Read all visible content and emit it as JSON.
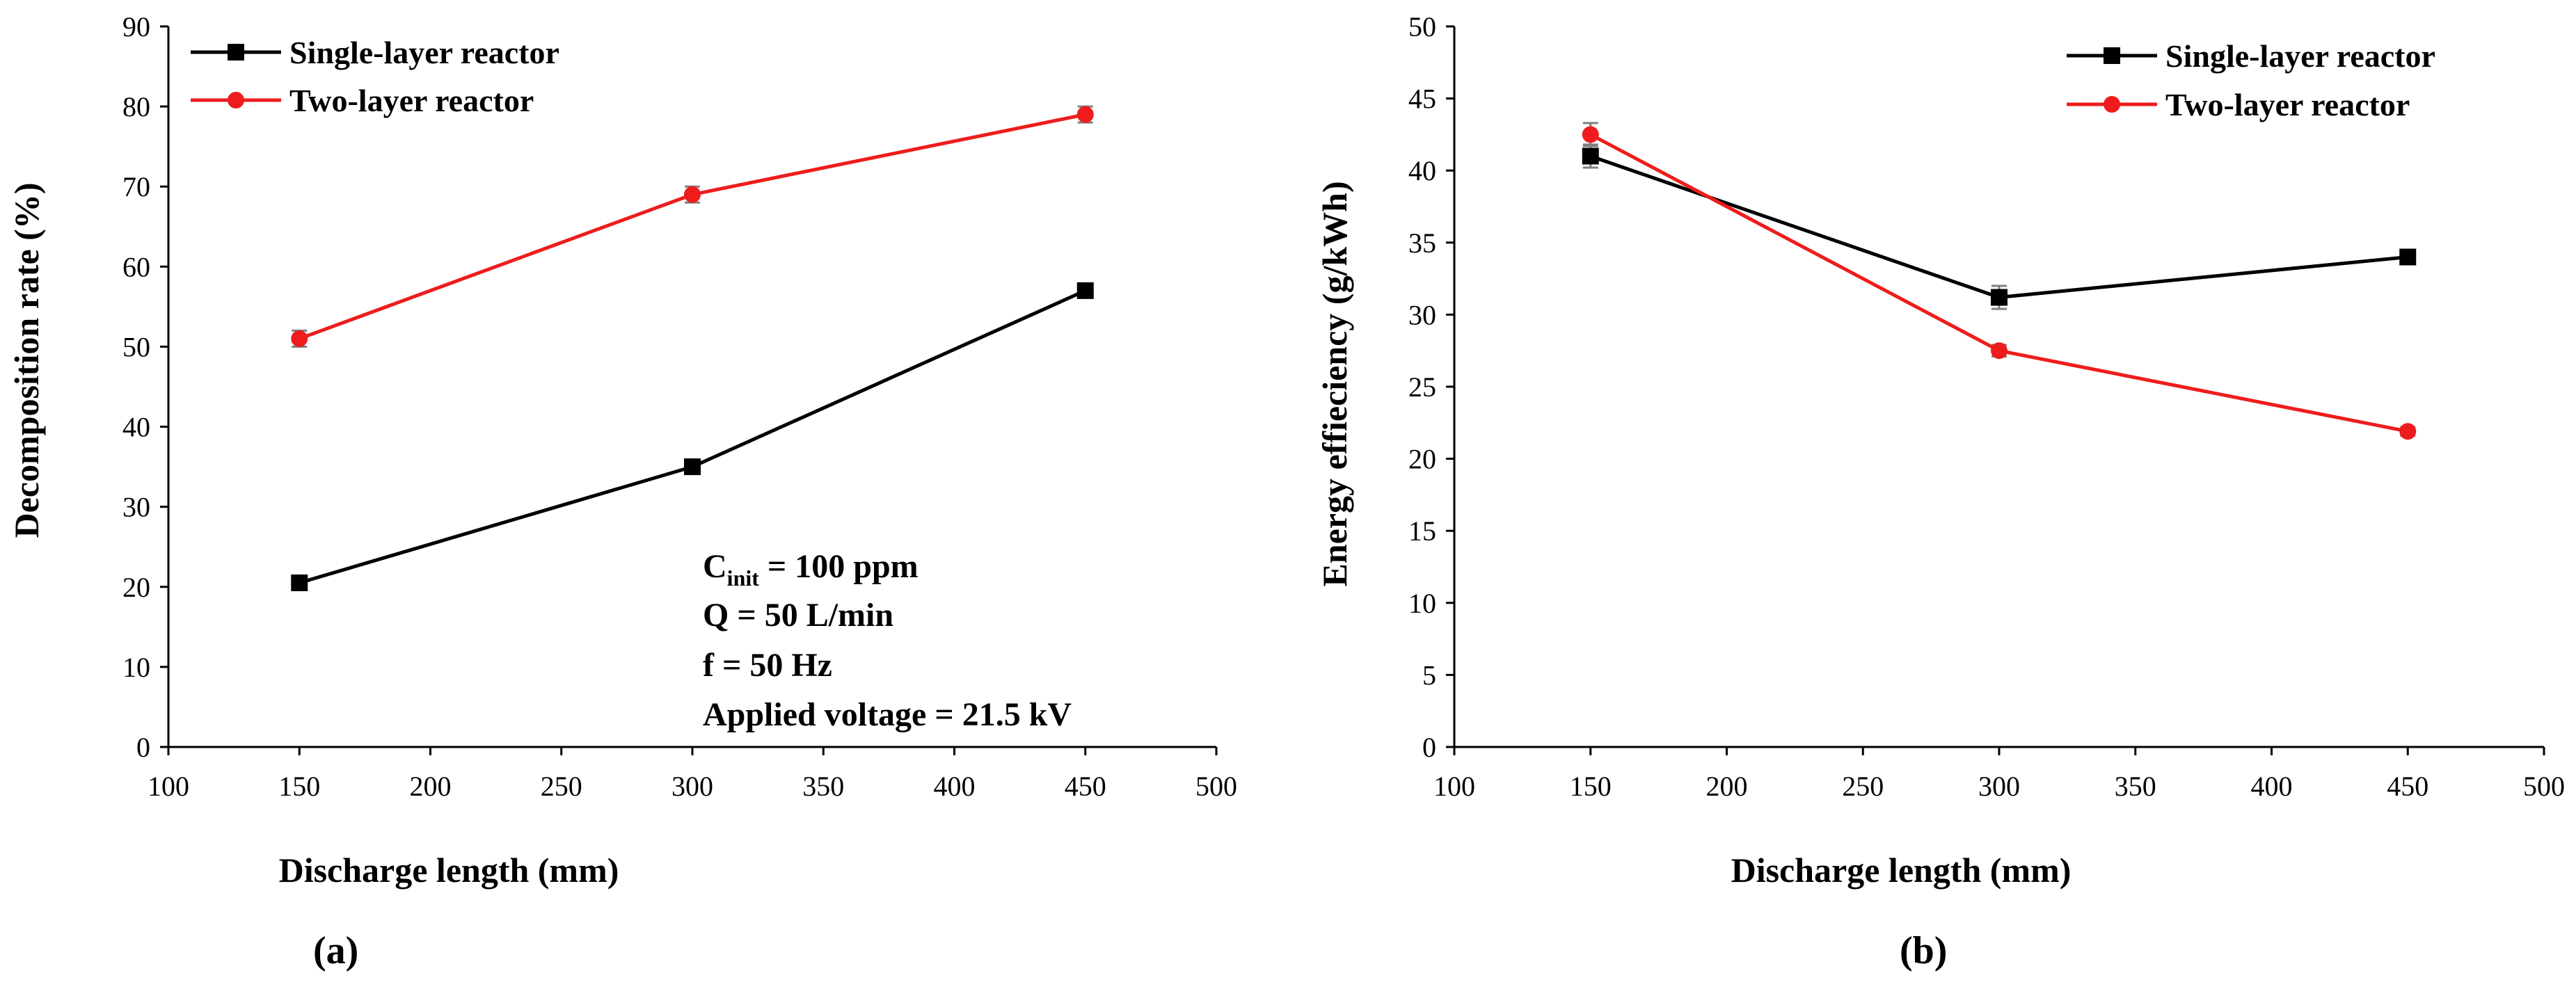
{
  "chart_data": [
    {
      "type": "line",
      "panel_label": "(a)",
      "xlabel": "Discharge length (mm)",
      "ylabel": "Decomposition rate (%)",
      "xlim": [
        100,
        500
      ],
      "ylim": [
        0,
        90
      ],
      "xticks": [
        100,
        150,
        200,
        250,
        300,
        350,
        400,
        450,
        500
      ],
      "yticks": [
        0,
        10,
        20,
        30,
        40,
        50,
        60,
        70,
        80,
        90
      ],
      "grid": false,
      "legend_position": "top-left",
      "x": [
        150,
        300,
        450
      ],
      "series": [
        {
          "name": "Single-layer reactor",
          "color": "#000000",
          "marker": "square",
          "values": [
            20.5,
            35,
            57
          ],
          "errors": [
            0.6,
            0.6,
            0.7
          ]
        },
        {
          "name": "Two-layer reactor",
          "color": "#ee1c1c",
          "marker": "circle",
          "values": [
            51,
            69,
            79
          ],
          "errors": [
            1.0,
            1.0,
            1.0
          ]
        }
      ],
      "annotations": {
        "cinit_main": "C",
        "cinit_sub": "init",
        "cinit_rest": " = 100 ppm",
        "flow": "Q = 50 L/min",
        "freq": "f = 50 Hz",
        "voltage": "Applied  voltage = 21.5 kV"
      }
    },
    {
      "type": "line",
      "panel_label": "(b)",
      "xlabel": "Discharge length (mm)",
      "ylabel": "Energy effieciency (g/kWh)",
      "xlim": [
        100,
        500
      ],
      "ylim": [
        0,
        50
      ],
      "xticks": [
        100,
        150,
        200,
        250,
        300,
        350,
        400,
        450,
        500
      ],
      "yticks": [
        0,
        5,
        10,
        15,
        20,
        25,
        30,
        35,
        40,
        45,
        50
      ],
      "grid": false,
      "legend_position": "top-right",
      "x": [
        150,
        300,
        450
      ],
      "series": [
        {
          "name": "Single-layer reactor",
          "color": "#000000",
          "marker": "square",
          "values": [
            41,
            31.2,
            34
          ],
          "errors": [
            0.8,
            0.8,
            0.5
          ]
        },
        {
          "name": "Two-layer reactor",
          "color": "#ee1c1c",
          "marker": "circle",
          "values": [
            42.5,
            27.5,
            21.9
          ],
          "errors": [
            0.8,
            0.4,
            0.3
          ]
        }
      ]
    }
  ]
}
